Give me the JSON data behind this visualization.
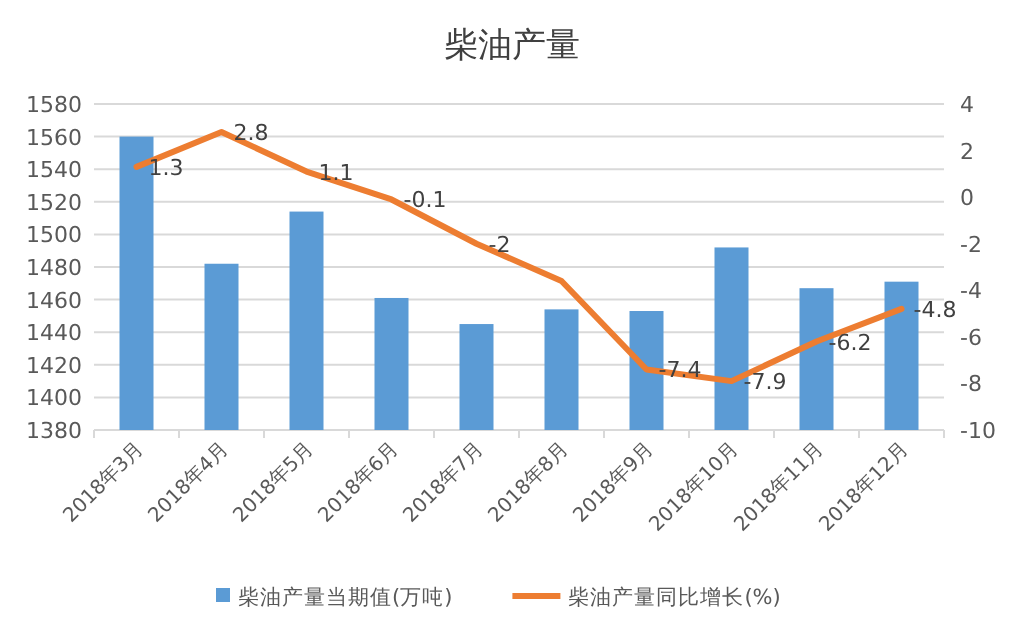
{
  "chart_data": {
    "type": "bar",
    "title": "柴油产量",
    "categories": [
      "2018年3月",
      "2018年4月",
      "2018年5月",
      "2018年6月",
      "2018年7月",
      "2018年8月",
      "2018年9月",
      "2018年10月",
      "2018年11月",
      "2018年12月"
    ],
    "series": [
      {
        "name": "柴油产量当期值(万吨)",
        "color": "#5b9bd5",
        "values": [
          1560,
          1482,
          1514,
          1461,
          1445,
          1454,
          1453,
          1492,
          1467,
          1471
        ]
      },
      {
        "name": "柴油产量同比增长(%)",
        "type": "line",
        "axis": "y2",
        "color": "#ed7d31",
        "values": [
          1.3,
          2.8,
          1.1,
          -0.1,
          -2,
          -3.6,
          -7.4,
          -7.9,
          -6.2,
          -4.8
        ],
        "value_labels": [
          "1.3",
          "2.8",
          "1.1",
          "-0.1",
          "-2",
          null,
          "-7.4",
          "-7.9",
          "-6.2",
          "-4.8"
        ]
      }
    ],
    "ylim": [
      1380,
      1580
    ],
    "yticks": [
      1380,
      1400,
      1420,
      1440,
      1460,
      1480,
      1500,
      1520,
      1540,
      1560,
      1580
    ],
    "y2lim": [
      -10,
      4
    ],
    "y2ticks": [
      -10,
      -8,
      -6,
      -4,
      -2,
      0,
      2,
      4
    ],
    "grid": "y",
    "legend": "bottom"
  }
}
